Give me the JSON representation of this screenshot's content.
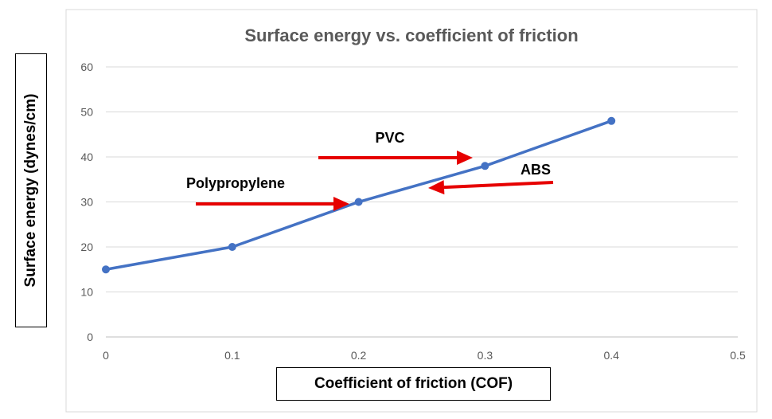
{
  "chart_data": {
    "type": "line",
    "title": "Surface energy vs. coefficient of friction",
    "xlabel": "Coefficient of friction (COF)",
    "ylabel": "Surface energy (dynes/cm)",
    "x_ticks": [
      "0",
      "0.1",
      "0.2",
      "0.3",
      "0.4",
      "0.5"
    ],
    "y_ticks": [
      "0",
      "10",
      "20",
      "30",
      "40",
      "50",
      "60"
    ],
    "xlim": [
      0,
      0.5
    ],
    "ylim": [
      0,
      60
    ],
    "grid": "horizontal",
    "series": [
      {
        "x": [
          0,
          0.1,
          0.2,
          0.3,
          0.4
        ],
        "values": [
          15,
          20,
          30,
          38,
          48
        ],
        "color": "#4472C4"
      }
    ],
    "annotations": [
      {
        "text": "Polypropylene",
        "points_to": [
          0.2,
          30
        ]
      },
      {
        "text": "PVC",
        "points_to": [
          0.3,
          38
        ]
      },
      {
        "text": "ABS",
        "points_to": [
          0.26,
          33
        ]
      }
    ],
    "arrow_color": "#E60000"
  }
}
